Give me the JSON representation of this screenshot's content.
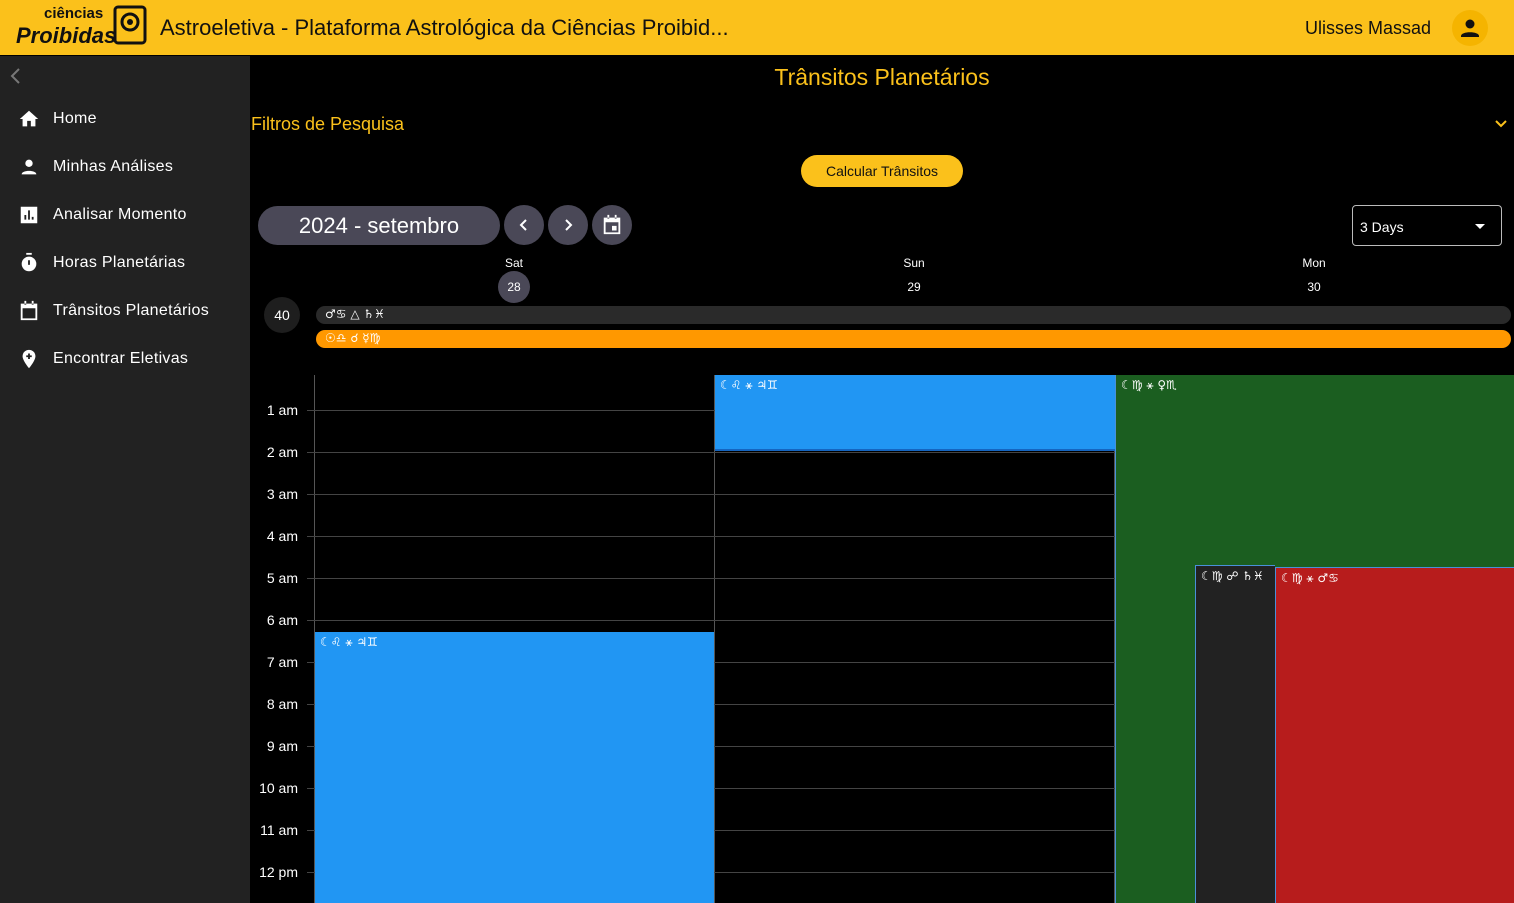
{
  "header": {
    "logo": [
      "ciências",
      "Proibidas"
    ],
    "title": "Astroeletiva - Plataforma Astrológica da Ciências Proibid...",
    "user": "Ulisses Massad"
  },
  "sidebar": {
    "items": [
      "Home",
      "Minhas Análises",
      "Analisar Momento",
      "Horas Planetárias",
      "Trânsitos Planetários",
      "Encontrar Eletivas"
    ]
  },
  "page": {
    "title": "Trânsitos Planetários",
    "filters": "Filtros de Pesquisa",
    "button": "Calcular Trânsitos"
  },
  "calendar": {
    "month": "2024 - setembro",
    "view": "3 Days",
    "week": "40",
    "days": [
      {
        "weekday": "Sat",
        "date": "28"
      },
      {
        "weekday": "Sun",
        "date": "29"
      },
      {
        "weekday": "Mon",
        "date": "30"
      }
    ],
    "allday": [
      "♂♋ △ ♄♓",
      "☉♎ ☌ ☿♍"
    ],
    "hours": [
      "1 am",
      "2 am",
      "3 am",
      "4 am",
      "5 am",
      "6 am",
      "7 am",
      "8 am",
      "9 am",
      "10 am",
      "11 am",
      "12 pm"
    ],
    "events": [
      "☾♌ ⚹ ♃♊",
      "☾♌ ⚹ ♃♊",
      "☾♍ ⚹ ♀♏",
      "☾♍ ☍ ♄♓",
      "☾♍ ⚹ ♂♋"
    ]
  }
}
